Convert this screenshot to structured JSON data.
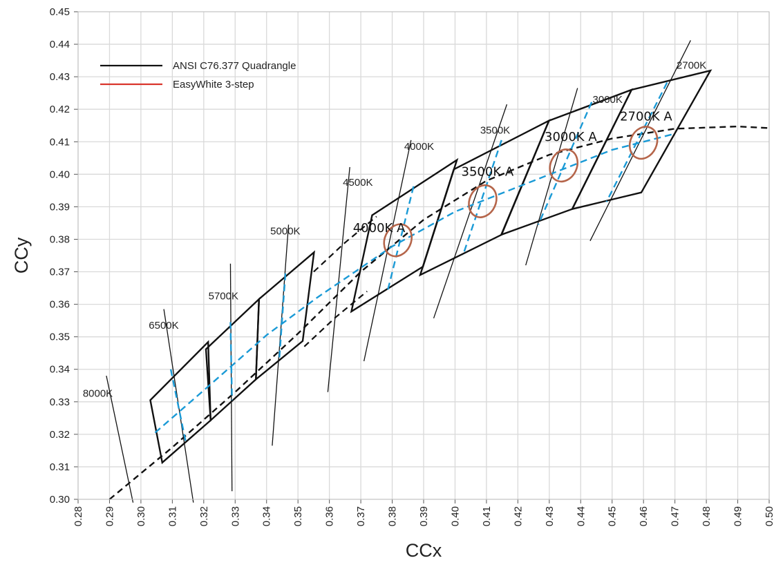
{
  "chart_data": {
    "type": "scatter",
    "xlabel": "CCx",
    "ylabel": "CCy",
    "xlim": [
      0.28,
      0.5
    ],
    "ylim": [
      0.3,
      0.45
    ],
    "x_ticks": [
      "0.28",
      "0.29",
      "0.30",
      "0.31",
      "0.32",
      "0.33",
      "0.34",
      "0.35",
      "0.36",
      "0.37",
      "0.38",
      "0.39",
      "0.40",
      "0.41",
      "0.42",
      "0.43",
      "0.44",
      "0.45",
      "0.46",
      "0.47",
      "0.48",
      "0.49",
      "0.50"
    ],
    "y_ticks": [
      "0.30",
      "0.31",
      "0.32",
      "0.33",
      "0.34",
      "0.35",
      "0.36",
      "0.37",
      "0.38",
      "0.39",
      "0.40",
      "0.41",
      "0.42",
      "0.43",
      "0.44",
      "0.45"
    ],
    "grid": true,
    "legend_position": "top-left",
    "legend": [
      {
        "label": "ANSI C76.377 Quadrangle",
        "color": "#111111"
      },
      {
        "label": "EasyWhite 3-step",
        "color": "#d9342b"
      }
    ],
    "colors": {
      "quadrangle": "#111111",
      "easywhite_dash": "#1a9ad6",
      "ellipse": "#b5654a",
      "grid": "#d9d9d9"
    },
    "planckian_locus": [
      [
        0.29,
        0.3
      ],
      [
        0.31,
        0.316
      ],
      [
        0.33,
        0.333
      ],
      [
        0.35,
        0.351
      ],
      [
        0.37,
        0.37
      ],
      [
        0.39,
        0.386
      ],
      [
        0.41,
        0.398
      ],
      [
        0.43,
        0.406
      ],
      [
        0.45,
        0.411
      ],
      [
        0.47,
        0.414
      ],
      [
        0.49,
        0.4147
      ],
      [
        0.5,
        0.4142
      ]
    ],
    "upper_dashed_line": [
      [
        0.355,
        0.37
      ],
      [
        0.365,
        0.379
      ],
      [
        0.375,
        0.387
      ]
    ],
    "lower_dashed_line": [
      [
        0.352,
        0.347
      ],
      [
        0.362,
        0.356
      ],
      [
        0.372,
        0.364
      ]
    ],
    "isotherms": [
      {
        "label": "8000K",
        "label_at": [
          0.2815,
          0.3315
        ],
        "from": [
          0.289,
          0.338
        ],
        "to": [
          0.2975,
          0.299
        ]
      },
      {
        "label": "6500K",
        "label_at": [
          0.3025,
          0.3525
        ],
        "from": [
          0.3073,
          0.3585
        ],
        "to": [
          0.3167,
          0.299
        ]
      },
      {
        "label": "5700K",
        "label_at": [
          0.3215,
          0.3615
        ],
        "from": [
          0.3285,
          0.3725
        ],
        "to": [
          0.329,
          0.3025
        ]
      },
      {
        "label": "5000K",
        "label_at": [
          0.3412,
          0.3815
        ],
        "from": [
          0.347,
          0.3845
        ],
        "to": [
          0.3418,
          0.3165
        ]
      },
      {
        "label": "4500K",
        "label_at": [
          0.3643,
          0.3965
        ],
        "from": [
          0.3665,
          0.4022
        ],
        "to": [
          0.3595,
          0.333
        ]
      },
      {
        "label": "4000K",
        "label_at": [
          0.3838,
          0.4075
        ],
        "from": [
          0.386,
          0.4105
        ],
        "to": [
          0.371,
          0.3425
        ]
      },
      {
        "label": "3500K",
        "label_at": [
          0.408,
          0.4125
        ],
        "from": [
          0.4165,
          0.4215
        ],
        "to": [
          0.3932,
          0.3557
        ]
      },
      {
        "label": "3000K",
        "label_at": [
          0.4438,
          0.422
        ],
        "from": [
          0.439,
          0.4265
        ],
        "to": [
          0.4225,
          0.372
        ]
      },
      {
        "label": "2700K",
        "label_at": [
          0.4705,
          0.4325
        ],
        "from": [
          0.475,
          0.4412
        ],
        "to": [
          0.443,
          0.3795
        ]
      }
    ],
    "quadrangles": [
      {
        "name": "6500K",
        "points": [
          [
            0.303,
            0.3305
          ],
          [
            0.3214,
            0.3484
          ],
          [
            0.3222,
            0.3243
          ],
          [
            0.3068,
            0.3113
          ]
        ]
      },
      {
        "name": "5700K",
        "points": [
          [
            0.3207,
            0.3462
          ],
          [
            0.3376,
            0.3616
          ],
          [
            0.3366,
            0.3369
          ],
          [
            0.3222,
            0.3243
          ]
        ]
      },
      {
        "name": "5000K",
        "points": [
          [
            0.3376,
            0.3616
          ],
          [
            0.3551,
            0.376
          ],
          [
            0.3515,
            0.3487
          ],
          [
            0.3366,
            0.3369
          ]
        ]
      },
      {
        "name": "4000K",
        "points": [
          [
            0.3736,
            0.3874
          ],
          [
            0.4006,
            0.4044
          ],
          [
            0.3898,
            0.3716
          ],
          [
            0.367,
            0.3578
          ]
        ]
      },
      {
        "name": "3500K",
        "points": [
          [
            0.3996,
            0.4015
          ],
          [
            0.4299,
            0.4165
          ],
          [
            0.4148,
            0.3814
          ],
          [
            0.3889,
            0.369
          ]
        ]
      },
      {
        "name": "3000K",
        "points": [
          [
            0.4299,
            0.4165
          ],
          [
            0.4562,
            0.426
          ],
          [
            0.4373,
            0.3893
          ],
          [
            0.4147,
            0.3814
          ]
        ]
      },
      {
        "name": "2700K",
        "points": [
          [
            0.4562,
            0.426
          ],
          [
            0.4813,
            0.4319
          ],
          [
            0.4593,
            0.3944
          ],
          [
            0.4373,
            0.3893
          ]
        ]
      }
    ],
    "easywhite_locus": [
      [
        0.3045,
        0.3205
      ],
      [
        0.32,
        0.3335
      ],
      [
        0.34,
        0.3505
      ],
      [
        0.356,
        0.362
      ],
      [
        0.38,
        0.3778
      ],
      [
        0.4,
        0.3885
      ],
      [
        0.425,
        0.398
      ],
      [
        0.45,
        0.4075
      ],
      [
        0.47,
        0.4125
      ]
    ],
    "easywhite_crosslines": [
      {
        "from": [
          0.3095,
          0.34
        ],
        "to": [
          0.3142,
          0.318
        ]
      },
      {
        "from": [
          0.3285,
          0.3545
        ],
        "to": [
          0.329,
          0.3305
        ]
      },
      {
        "from": [
          0.346,
          0.3695
        ],
        "to": [
          0.344,
          0.3425
        ]
      },
      {
        "from": [
          0.3868,
          0.3963
        ],
        "to": [
          0.3785,
          0.364
        ]
      },
      {
        "from": [
          0.4148,
          0.4105
        ],
        "to": [
          0.4025,
          0.375
        ]
      },
      {
        "from": [
          0.4435,
          0.4222
        ],
        "to": [
          0.4265,
          0.3845
        ]
      },
      {
        "from": [
          0.4675,
          0.4282
        ],
        "to": [
          0.4482,
          0.3915
        ]
      }
    ],
    "ellipses": [
      {
        "label": "4000K A",
        "center": [
          0.3818,
          0.3797
        ],
        "label_at": [
          0.3675,
          0.3822
        ]
      },
      {
        "label": "3500K A",
        "center": [
          0.4088,
          0.3917
        ],
        "label_at": [
          0.402,
          0.3995
        ]
      },
      {
        "label": "3000K A",
        "center": [
          0.4346,
          0.4027
        ],
        "label_at": [
          0.4285,
          0.4103
        ]
      },
      {
        "label": "2700K A",
        "center": [
          0.46,
          0.4097
        ],
        "label_at": [
          0.4525,
          0.4165
        ]
      }
    ]
  }
}
